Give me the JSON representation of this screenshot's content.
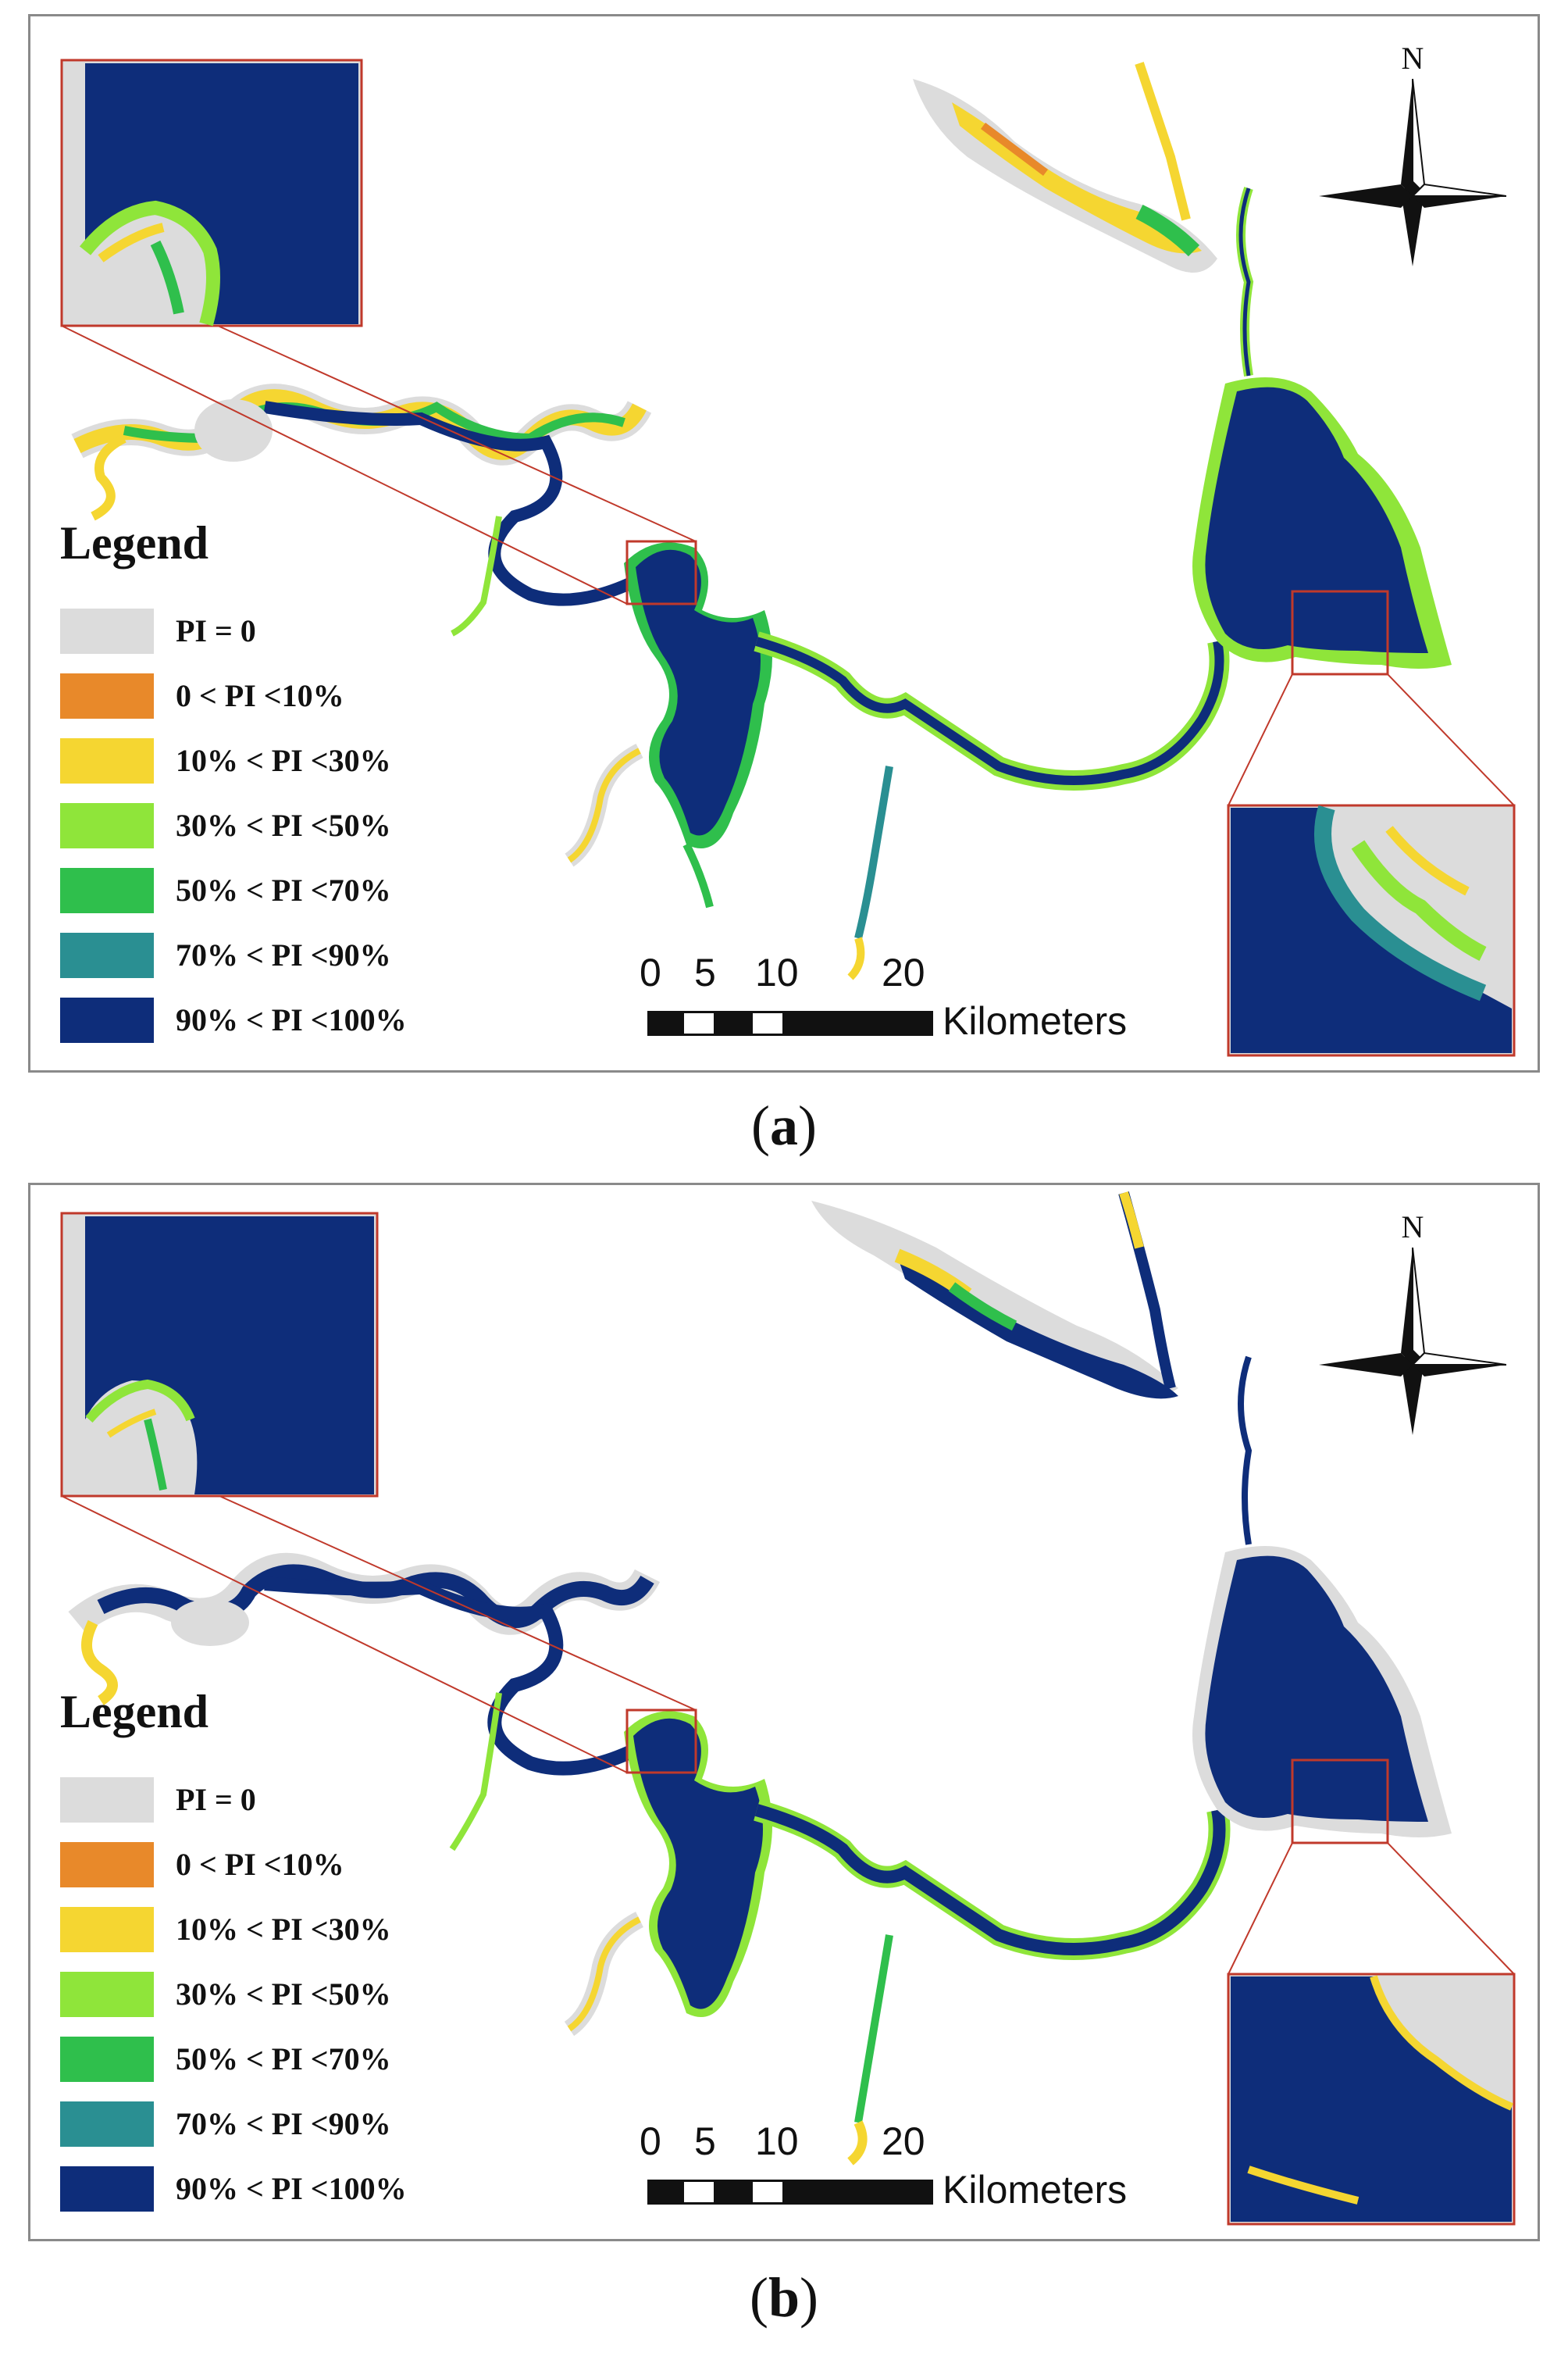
{
  "panels": [
    {
      "id": "a",
      "caption_label": "a",
      "north_label": "N",
      "legend": {
        "title": "Legend",
        "items": [
          {
            "label": "PI = 0",
            "color": "#dcdcdc"
          },
          {
            "label": "0 < PI <10%",
            "color": "#e8892a"
          },
          {
            "label": "10% < PI <30%",
            "color": "#f5d631"
          },
          {
            "label": "30% < PI <50%",
            "color": "#8fe53a"
          },
          {
            "label": "50% < PI <70%",
            "color": "#2fbf4c"
          },
          {
            "label": "70% < PI <90%",
            "color": "#2a8f92"
          },
          {
            "label": "90% < PI <100%",
            "color": "#0e2d7a"
          }
        ]
      },
      "scale_bar": {
        "ticks": [
          "0",
          "5",
          "10",
          "20"
        ],
        "unit": "Kilometers"
      }
    },
    {
      "id": "b",
      "caption_label": "b",
      "north_label": "N",
      "legend": {
        "title": "Legend",
        "items": [
          {
            "label": "PI = 0",
            "color": "#dcdcdc"
          },
          {
            "label": "0 < PI <10%",
            "color": "#e8892a"
          },
          {
            "label": "10% < PI <30%",
            "color": "#f5d631"
          },
          {
            "label": "30% < PI <50%",
            "color": "#8fe53a"
          },
          {
            "label": "50% < PI <70%",
            "color": "#2fbf4c"
          },
          {
            "label": "70% < PI <90%",
            "color": "#2a8f92"
          },
          {
            "label": "90% < PI <100%",
            "color": "#0e2d7a"
          }
        ]
      },
      "scale_bar": {
        "ticks": [
          "0",
          "5",
          "10",
          "20"
        ],
        "unit": "Kilometers"
      }
    }
  ],
  "colors": {
    "frame": "#8a8a8a",
    "zoom_outline": "#c0392b",
    "water_core": "#0e2d7a",
    "shore": "#dcdcdc"
  }
}
